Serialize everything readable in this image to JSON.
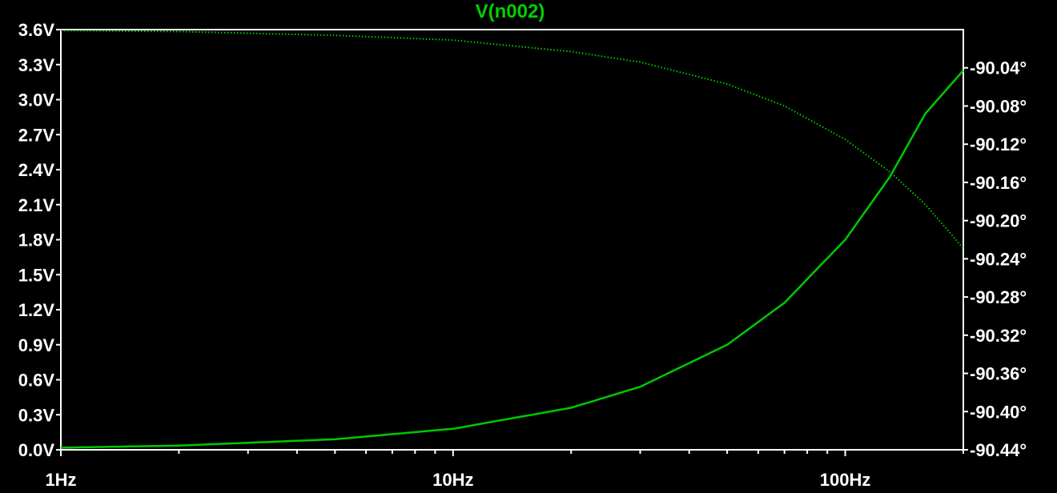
{
  "chart_data": {
    "type": "line",
    "title": "V(n002)",
    "xscale": "log",
    "xlim": [
      1,
      200
    ],
    "xticks": [
      {
        "value": 1,
        "label": "1Hz"
      },
      {
        "value": 10,
        "label": "10Hz"
      },
      {
        "value": 100,
        "label": "100Hz"
      }
    ],
    "left_axis": {
      "ylim": [
        0.0,
        3.6
      ],
      "ticks": [
        {
          "value": 3.6,
          "label": "3.6V"
        },
        {
          "value": 3.3,
          "label": "3.3V"
        },
        {
          "value": 3.0,
          "label": "3.0V"
        },
        {
          "value": 2.7,
          "label": "2.7V"
        },
        {
          "value": 2.4,
          "label": "2.4V"
        },
        {
          "value": 2.1,
          "label": "2.1V"
        },
        {
          "value": 1.8,
          "label": "1.8V"
        },
        {
          "value": 1.5,
          "label": "1.5V"
        },
        {
          "value": 1.2,
          "label": "1.2V"
        },
        {
          "value": 0.9,
          "label": "0.9V"
        },
        {
          "value": 0.6,
          "label": "0.6V"
        },
        {
          "value": 0.3,
          "label": "0.3V"
        },
        {
          "value": 0.0,
          "label": "0.0V"
        }
      ]
    },
    "right_axis": {
      "ylim": [
        -90.44,
        -90.0
      ],
      "ticks": [
        {
          "value": -90.04,
          "label": "-90.04°"
        },
        {
          "value": -90.08,
          "label": "-90.08°"
        },
        {
          "value": -90.12,
          "label": "-90.12°"
        },
        {
          "value": -90.16,
          "label": "-90.16°"
        },
        {
          "value": -90.2,
          "label": "-90.20°"
        },
        {
          "value": -90.24,
          "label": "-90.24°"
        },
        {
          "value": -90.28,
          "label": "-90.28°"
        },
        {
          "value": -90.32,
          "label": "-90.32°"
        },
        {
          "value": -90.36,
          "label": "-90.36°"
        },
        {
          "value": -90.4,
          "label": "-90.40°"
        },
        {
          "value": -90.44,
          "label": "-90.44°"
        }
      ]
    },
    "series": [
      {
        "axis": "left",
        "style": "solid",
        "x": [
          1,
          2,
          5,
          10,
          20,
          30,
          50,
          70,
          100,
          130,
          160,
          200
        ],
        "y": [
          0.018,
          0.036,
          0.09,
          0.18,
          0.36,
          0.54,
          0.9,
          1.26,
          1.8,
          2.34,
          2.88,
          3.25
        ]
      },
      {
        "axis": "right",
        "style": "dotted",
        "x": [
          1,
          2,
          5,
          10,
          20,
          30,
          50,
          70,
          100,
          130,
          160,
          200
        ],
        "y": [
          -90.001,
          -90.002,
          -90.006,
          -90.011,
          -90.023,
          -90.034,
          -90.057,
          -90.08,
          -90.115,
          -90.149,
          -90.183,
          -90.229
        ]
      }
    ],
    "grid": false,
    "colors": {
      "background": "#000000",
      "frame": "#ffffff",
      "trace": "#00c800",
      "tick_text": "#ffffff",
      "title_text": "#00d000"
    }
  }
}
